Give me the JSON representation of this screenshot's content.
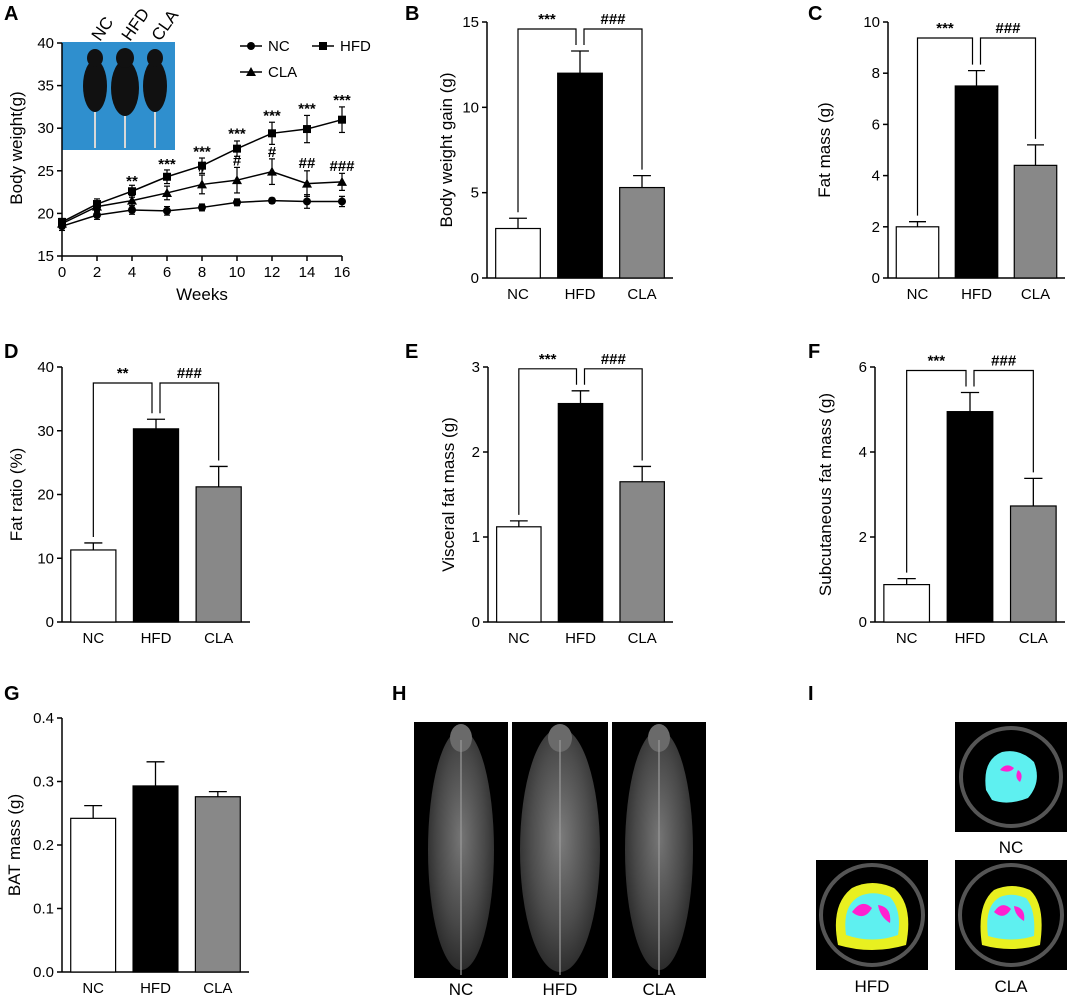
{
  "figure": {
    "panel_labels": [
      "A",
      "B",
      "C",
      "D",
      "E",
      "F",
      "G",
      "H",
      "I"
    ],
    "group_labels": [
      "NC",
      "HFD",
      "CLA"
    ],
    "group_colors": {
      "NC": "#ffffff",
      "HFD": "#000000",
      "CLA": "#888888"
    }
  },
  "chart_data": [
    {
      "id": "A",
      "type": "line",
      "title": "",
      "xlabel": "Weeks",
      "ylabel": "Body weight(g)",
      "xlim": [
        0,
        16
      ],
      "ylim": [
        15,
        40
      ],
      "xticks": [
        0,
        2,
        4,
        6,
        8,
        10,
        12,
        14,
        16
      ],
      "yticks": [
        15,
        20,
        25,
        30,
        35,
        40
      ],
      "legend": {
        "position": "top-right",
        "entries": [
          "NC",
          "HFD",
          "CLA"
        ]
      },
      "series": [
        {
          "name": "NC",
          "marker": "circle",
          "x": [
            0,
            2,
            4,
            6,
            8,
            10,
            12,
            14,
            16
          ],
          "values": [
            18.5,
            19.8,
            20.4,
            20.3,
            20.7,
            21.3,
            21.5,
            21.4,
            21.4
          ],
          "errors": [
            0.5,
            0.5,
            0.5,
            0.5,
            0.4,
            0.4,
            0.3,
            0.8,
            0.6
          ]
        },
        {
          "name": "HFD",
          "marker": "square",
          "x": [
            0,
            2,
            4,
            6,
            8,
            10,
            12,
            14,
            16
          ],
          "values": [
            19.0,
            21.1,
            22.6,
            24.3,
            25.6,
            27.6,
            29.4,
            29.9,
            31.0
          ],
          "errors": [
            0.4,
            0.6,
            0.7,
            0.8,
            0.9,
            0.9,
            1.3,
            1.6,
            1.5
          ]
        },
        {
          "name": "CLA",
          "marker": "triangle",
          "x": [
            0,
            2,
            4,
            6,
            8,
            10,
            12,
            14,
            16
          ],
          "values": [
            18.8,
            20.8,
            21.5,
            22.4,
            23.4,
            23.9,
            24.9,
            23.5,
            23.7
          ],
          "errors": [
            0.4,
            0.6,
            0.6,
            0.8,
            1.1,
            1.5,
            1.5,
            1.5,
            1.0
          ]
        }
      ],
      "annotations": [
        {
          "x": 4,
          "text": "**",
          "y": 23.2
        },
        {
          "x": 6,
          "text": "***",
          "y": 25.2
        },
        {
          "x": 8,
          "text": "***",
          "y": 26.7
        },
        {
          "x": 10,
          "text": "***",
          "y": 28.8
        },
        {
          "x": 12,
          "text": "***",
          "y": 30.9
        },
        {
          "x": 14,
          "text": "***",
          "y": 31.7
        },
        {
          "x": 16,
          "text": "***",
          "y": 32.7
        },
        {
          "x": 8,
          "text": "#",
          "y": 24.9
        },
        {
          "x": 10,
          "text": "#",
          "y": 25.6
        },
        {
          "x": 12,
          "text": "#",
          "y": 26.6
        },
        {
          "x": 14,
          "text": "##",
          "y": 25.3
        },
        {
          "x": 16,
          "text": "###",
          "y": 25.0
        }
      ],
      "photo_labels": [
        "NC",
        "HFD",
        "CLA"
      ]
    },
    {
      "id": "B",
      "type": "bar",
      "title": "",
      "xlabel": "",
      "ylabel": "Body weight gain (g)",
      "ylim": [
        0,
        15
      ],
      "yticks": [
        0,
        5,
        10,
        15
      ],
      "categories": [
        "NC",
        "HFD",
        "CLA"
      ],
      "values": [
        2.9,
        12.0,
        5.3
      ],
      "errors": [
        0.6,
        1.3,
        0.7
      ],
      "significance": [
        {
          "pair": [
            "NC",
            "HFD"
          ],
          "text": "***"
        },
        {
          "pair": [
            "HFD",
            "CLA"
          ],
          "text": "###"
        }
      ]
    },
    {
      "id": "C",
      "type": "bar",
      "title": "",
      "xlabel": "",
      "ylabel": "Fat mass (g)",
      "ylim": [
        0,
        10
      ],
      "yticks": [
        0,
        2,
        4,
        6,
        8,
        10
      ],
      "categories": [
        "NC",
        "HFD",
        "CLA"
      ],
      "values": [
        2.0,
        7.5,
        4.4
      ],
      "errors": [
        0.2,
        0.6,
        0.8
      ],
      "significance": [
        {
          "pair": [
            "NC",
            "HFD"
          ],
          "text": "***"
        },
        {
          "pair": [
            "HFD",
            "CLA"
          ],
          "text": "###"
        }
      ]
    },
    {
      "id": "D",
      "type": "bar",
      "title": "",
      "xlabel": "",
      "ylabel": "Fat ratio (%)",
      "ylim": [
        0,
        40
      ],
      "yticks": [
        0,
        10,
        20,
        30,
        40
      ],
      "categories": [
        "NC",
        "HFD",
        "CLA"
      ],
      "values": [
        11.3,
        30.3,
        21.2
      ],
      "errors": [
        1.1,
        1.5,
        3.2
      ],
      "significance": [
        {
          "pair": [
            "NC",
            "HFD"
          ],
          "text": "**"
        },
        {
          "pair": [
            "HFD",
            "CLA"
          ],
          "text": "###"
        }
      ]
    },
    {
      "id": "E",
      "type": "bar",
      "title": "",
      "xlabel": "",
      "ylabel": "Visceral fat mass (g)",
      "ylim": [
        0,
        3
      ],
      "yticks": [
        0,
        1,
        2,
        3
      ],
      "categories": [
        "NC",
        "HFD",
        "CLA"
      ],
      "values": [
        1.12,
        2.57,
        1.65
      ],
      "errors": [
        0.07,
        0.15,
        0.18
      ],
      "significance": [
        {
          "pair": [
            "NC",
            "HFD"
          ],
          "text": "***"
        },
        {
          "pair": [
            "HFD",
            "CLA"
          ],
          "text": "###"
        }
      ]
    },
    {
      "id": "F",
      "type": "bar",
      "title": "",
      "xlabel": "",
      "ylabel": "Subcutaneous fat mass (g)",
      "ylim": [
        0,
        6
      ],
      "yticks": [
        0,
        2,
        4,
        6
      ],
      "categories": [
        "NC",
        "HFD",
        "CLA"
      ],
      "values": [
        0.88,
        4.95,
        2.73
      ],
      "errors": [
        0.14,
        0.45,
        0.65
      ],
      "significance": [
        {
          "pair": [
            "NC",
            "HFD"
          ],
          "text": "***"
        },
        {
          "pair": [
            "HFD",
            "CLA"
          ],
          "text": "###"
        }
      ]
    },
    {
      "id": "G",
      "type": "bar",
      "title": "",
      "xlabel": "",
      "ylabel": "BAT mass (g)",
      "ylim": [
        0,
        0.4
      ],
      "yticks": [
        0.0,
        0.1,
        0.2,
        0.3,
        0.4
      ],
      "categories": [
        "NC",
        "HFD",
        "CLA"
      ],
      "values": [
        0.242,
        0.293,
        0.276
      ],
      "errors": [
        0.02,
        0.038,
        0.008
      ],
      "significance": []
    }
  ],
  "images": {
    "H": {
      "description_labels": [
        "NC",
        "HFD",
        "CLA"
      ]
    },
    "I": {
      "description_labels": [
        "NC",
        "HFD",
        "CLA"
      ]
    }
  }
}
